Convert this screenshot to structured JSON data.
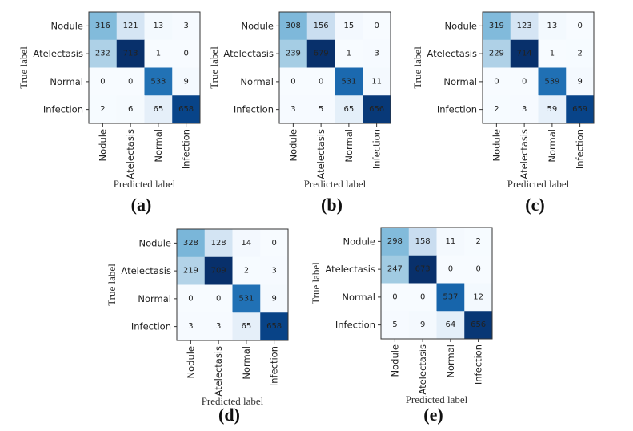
{
  "chart_data": [
    {
      "type": "heatmap",
      "panel": "(a)",
      "title": "",
      "xlabel": "Predicted label",
      "ylabel": "True label",
      "x_categories": [
        "Nodule",
        "Atelectasis",
        "Normal",
        "Infection"
      ],
      "y_categories": [
        "Nodule",
        "Atelectasis",
        "Normal",
        "Infection"
      ],
      "colormap": "Blues",
      "values": [
        [
          316,
          121,
          13,
          3
        ],
        [
          232,
          713,
          1,
          0
        ],
        [
          0,
          0,
          533,
          9
        ],
        [
          2,
          6,
          65,
          658
        ]
      ]
    },
    {
      "type": "heatmap",
      "panel": "(b)",
      "title": "",
      "xlabel": "Predicted label",
      "ylabel": "True label",
      "x_categories": [
        "Nodule",
        "Atelectasis",
        "Normal",
        "Infection"
      ],
      "y_categories": [
        "Nodule",
        "Atelectasis",
        "Normal",
        "Infection"
      ],
      "colormap": "Blues",
      "values": [
        [
          308,
          156,
          15,
          0
        ],
        [
          239,
          679,
          1,
          3
        ],
        [
          0,
          0,
          531,
          11
        ],
        [
          3,
          5,
          65,
          656
        ]
      ]
    },
    {
      "type": "heatmap",
      "panel": "(c)",
      "title": "",
      "xlabel": "Predicted label",
      "ylabel": "True label",
      "x_categories": [
        "Nodule",
        "Atelectasis",
        "Normal",
        "Infection"
      ],
      "y_categories": [
        "Nodule",
        "Atelectasis",
        "Normal",
        "Infection"
      ],
      "colormap": "Blues",
      "values": [
        [
          319,
          123,
          13,
          0
        ],
        [
          229,
          714,
          1,
          2
        ],
        [
          0,
          0,
          539,
          9
        ],
        [
          2,
          3,
          59,
          659
        ]
      ]
    },
    {
      "type": "heatmap",
      "panel": "(d)",
      "title": "",
      "xlabel": "Predicted label",
      "ylabel": "True label",
      "x_categories": [
        "Nodule",
        "Atelectasis",
        "Normal",
        "Infection"
      ],
      "y_categories": [
        "Nodule",
        "Atelectasis",
        "Normal",
        "Infection"
      ],
      "colormap": "Blues",
      "values": [
        [
          328,
          128,
          14,
          0
        ],
        [
          219,
          709,
          2,
          3
        ],
        [
          0,
          0,
          531,
          9
        ],
        [
          3,
          3,
          65,
          658
        ]
      ]
    },
    {
      "type": "heatmap",
      "panel": "(e)",
      "title": "",
      "xlabel": "Predicted label",
      "ylabel": "True label",
      "x_categories": [
        "Nodule",
        "Atelectasis",
        "Normal",
        "Infection"
      ],
      "y_categories": [
        "Nodule",
        "Atelectasis",
        "Normal",
        "Infection"
      ],
      "colormap": "Blues",
      "values": [
        [
          298,
          158,
          11,
          2
        ],
        [
          247,
          673,
          0,
          0
        ],
        [
          0,
          0,
          537,
          12
        ],
        [
          5,
          9,
          64,
          656
        ]
      ]
    }
  ]
}
